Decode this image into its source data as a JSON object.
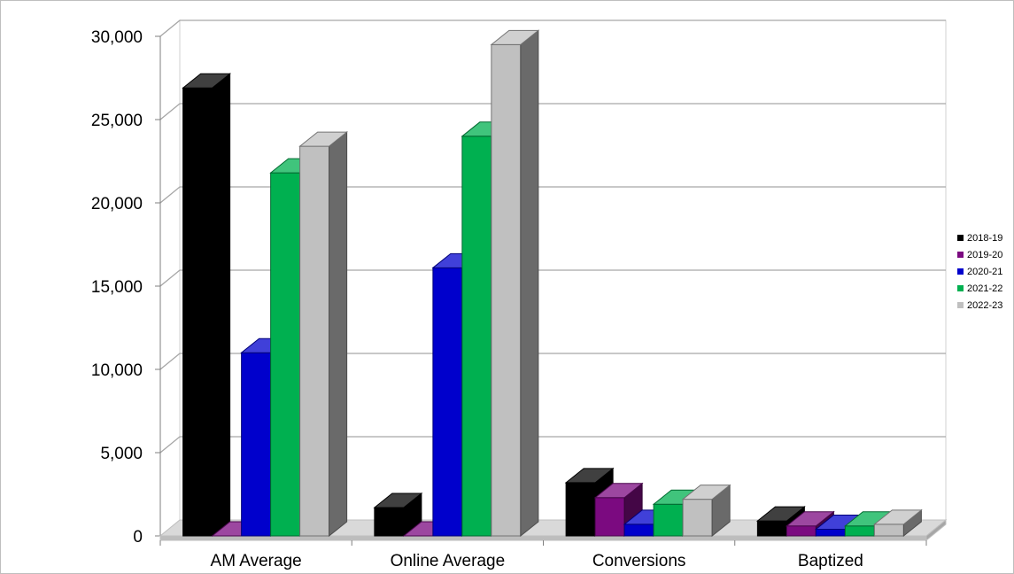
{
  "chart_data": {
    "type": "bar",
    "title": "",
    "xlabel": "",
    "ylabel": "",
    "ylim": [
      0,
      30000
    ],
    "yticks": [
      0,
      5000,
      10000,
      15000,
      20000,
      25000,
      30000
    ],
    "ytick_labels": [
      "0",
      "5,000",
      "10,000",
      "15,000",
      "20,000",
      "25,000",
      "30,000"
    ],
    "categories": [
      "AM Average",
      "Online Average",
      "Conversions",
      "Baptized"
    ],
    "grid": true,
    "legend_position": "right",
    "series": [
      {
        "name": "2018-19",
        "color": "#000000",
        "values": [
          26900,
          1700,
          3200,
          900
        ]
      },
      {
        "name": "2019-20",
        "color": "#7b0a80",
        "values": [
          0,
          0,
          2300,
          600
        ]
      },
      {
        "name": "2020-21",
        "color": "#0000cc",
        "values": [
          11000,
          16100,
          700,
          400
        ]
      },
      {
        "name": "2021-22",
        "color": "#00b050",
        "values": [
          21800,
          24000,
          1900,
          600
        ]
      },
      {
        "name": "2022-23",
        "color": "#c0c0c0",
        "values": [
          23400,
          29500,
          2200,
          700
        ]
      }
    ]
  }
}
